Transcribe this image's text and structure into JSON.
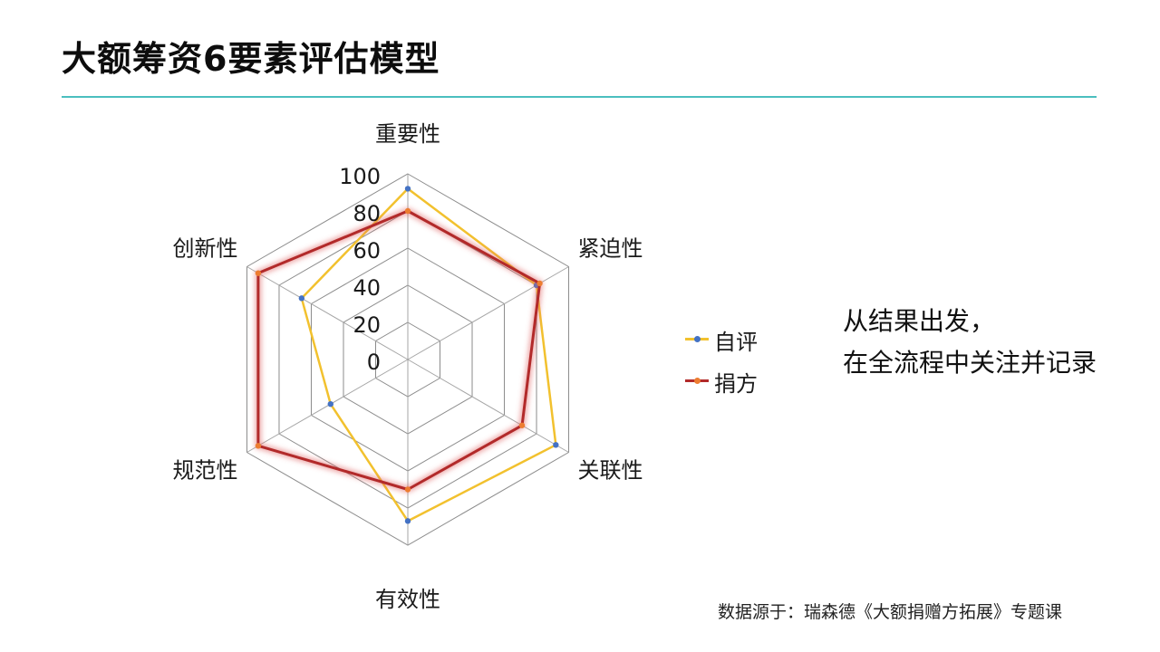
{
  "slide": {
    "title": "大额筹资6要素评估模型",
    "rule_color": "#4bbfbf"
  },
  "chart_data": {
    "type": "radar",
    "categories": [
      "重要性",
      "紧迫性",
      "关联性",
      "有效性",
      "规范性",
      "创新性"
    ],
    "rlim": [
      0,
      100
    ],
    "ticks": [
      "0",
      "20",
      "40",
      "60",
      "80",
      "100"
    ],
    "grid": true,
    "legend_position": "right",
    "series": [
      {
        "name": "自评",
        "values": [
          92,
          80,
          92,
          87,
          48,
          66
        ],
        "color": "#f2c12e",
        "marker_color": "#4472c4"
      },
      {
        "name": "捐方",
        "values": [
          80,
          82,
          71,
          70,
          93,
          93
        ],
        "color": "#b22a2a",
        "marker_color": "#ed7d31"
      }
    ]
  },
  "notes": {
    "line1": "从结果出发，",
    "line2": "在全流程中关注并记录"
  },
  "source": "数据源于：瑞森德《大额捐赠方拓展》专题课"
}
